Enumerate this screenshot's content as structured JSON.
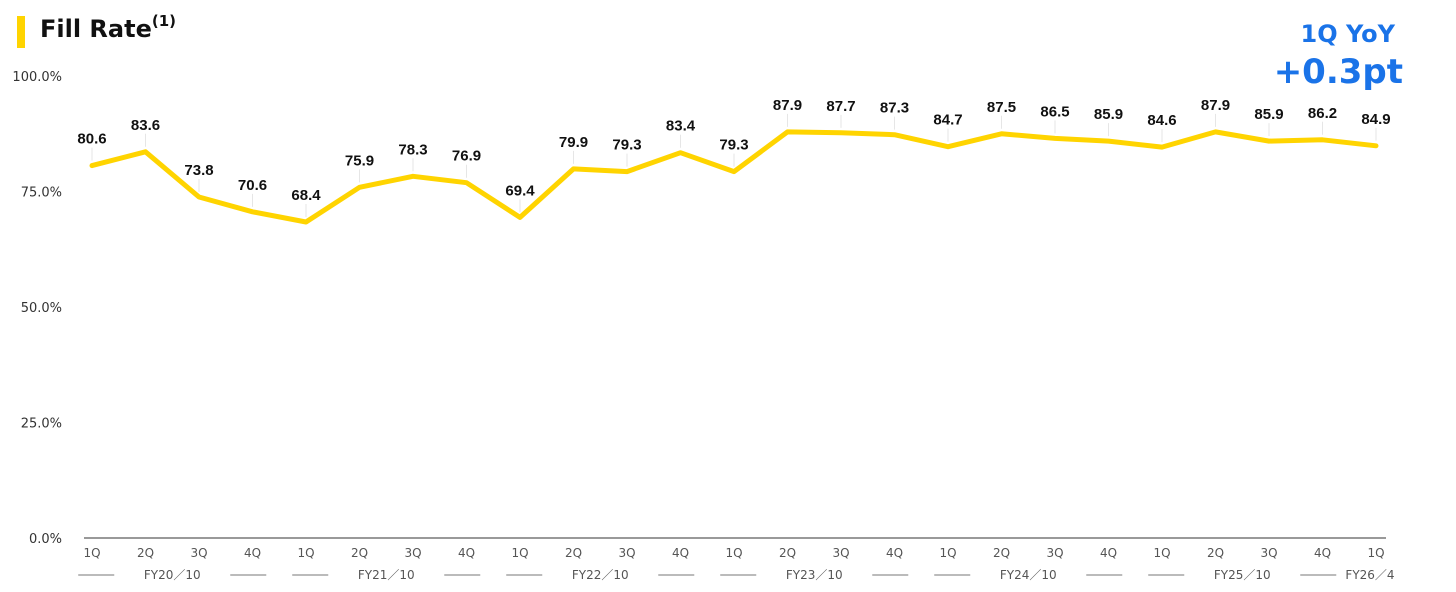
{
  "title": "Fill Rate",
  "title_superscript": "(1)",
  "badge": {
    "label": "1Q YoY",
    "value": "+0.3pt",
    "color": "#1A73E8"
  },
  "chart_data": {
    "type": "line",
    "title": "Fill Rate",
    "categories": [
      "1Q",
      "2Q",
      "3Q",
      "4Q",
      "1Q",
      "2Q",
      "3Q",
      "4Q",
      "1Q",
      "2Q",
      "3Q",
      "4Q",
      "1Q",
      "2Q",
      "3Q",
      "4Q",
      "1Q",
      "2Q",
      "3Q",
      "4Q",
      "1Q",
      "2Q",
      "3Q",
      "4Q",
      "1Q"
    ],
    "groups": [
      {
        "label": "FY20／10",
        "count": 4
      },
      {
        "label": "FY21／10",
        "count": 4
      },
      {
        "label": "FY22／10",
        "count": 4
      },
      {
        "label": "FY23／10",
        "count": 4
      },
      {
        "label": "FY24／10",
        "count": 4
      },
      {
        "label": "FY25／10",
        "count": 4
      },
      {
        "label": "FY26／4",
        "count": 1
      }
    ],
    "series": [
      {
        "values": [
          80.6,
          83.6,
          73.8,
          70.6,
          68.4,
          75.9,
          78.3,
          76.9,
          69.4,
          79.9,
          79.3,
          83.4,
          79.3,
          87.9,
          87.7,
          87.3,
          84.7,
          87.5,
          86.5,
          85.9,
          84.6,
          87.9,
          85.9,
          86.2,
          84.9
        ],
        "color": "#FFD400"
      }
    ],
    "data_labels": [
      "80.6",
      "83.6",
      "73.8",
      "70.6",
      "68.4",
      "75.9",
      "78.3",
      "76.9",
      "69.4",
      "79.9",
      "79.3",
      "83.4",
      "79.3",
      "87.9",
      "87.7",
      "87.3",
      "84.7",
      "87.5",
      "86.5",
      "85.9",
      "84.6",
      "87.9",
      "85.9",
      "86.2",
      "84.9"
    ],
    "ylim": [
      0,
      100
    ],
    "yticks": [
      "0.0%",
      "25.0%",
      "50.0%",
      "75.0%",
      "100.0%"
    ],
    "ytick_values": [
      0,
      25,
      50,
      75,
      100
    ],
    "grid": false,
    "legend": "none",
    "xlabel": "",
    "ylabel": ""
  }
}
